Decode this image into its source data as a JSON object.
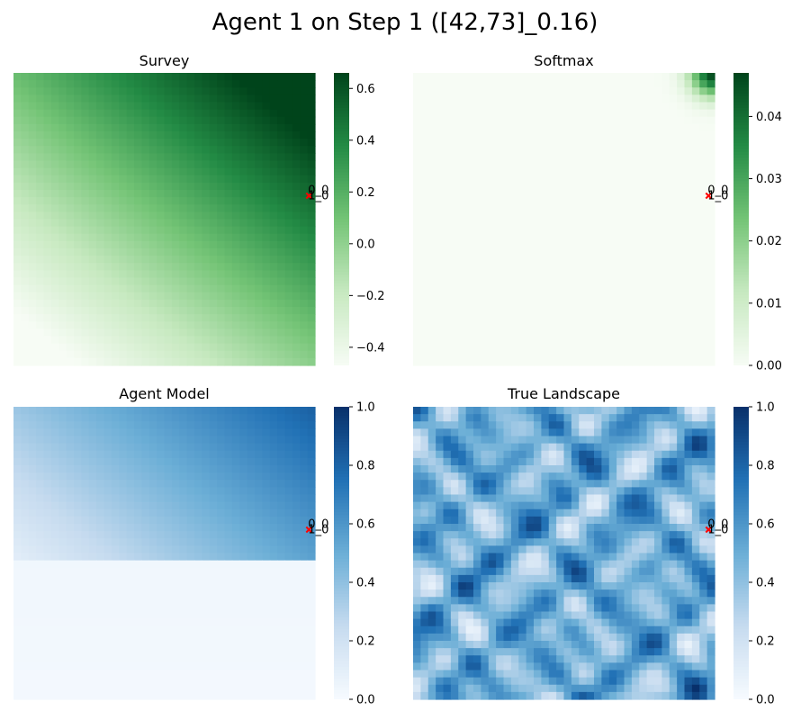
{
  "figure": {
    "suptitle": "Agent 1 on Step 1 ([42,73]_0.16)"
  },
  "chart_data": [
    {
      "type": "heatmap",
      "title": "Survey",
      "colormap": "Greens",
      "colors": [
        "#f7fcf5",
        "#c7e9c0",
        "#74c476",
        "#238b45",
        "#00441b"
      ],
      "vmin": -0.47,
      "vmax": 0.66,
      "colorbar_ticks": [
        "−0.4",
        "−0.2",
        "0.0",
        "0.2",
        "0.4",
        "0.6"
      ],
      "colorbar_tick_values": [
        -0.4,
        -0.2,
        0.0,
        0.2,
        0.4,
        0.6
      ],
      "grid": "smooth gradient increasing toward top-right",
      "marker": {
        "symbol": "x",
        "color": "#ff0000",
        "labels": [
          "0_0",
          "1_0"
        ],
        "row": 0.42,
        "col": 0.98
      }
    },
    {
      "type": "heatmap",
      "title": "Softmax",
      "colormap": "Greens",
      "colors": [
        "#f7fcf5",
        "#c7e9c0",
        "#74c476",
        "#238b45",
        "#00441b"
      ],
      "vmin": 0.0,
      "vmax": 0.047,
      "colorbar_ticks": [
        "0.00",
        "0.01",
        "0.02",
        "0.03",
        "0.04"
      ],
      "colorbar_tick_values": [
        0.0,
        0.01,
        0.02,
        0.03,
        0.04
      ],
      "grid": "near zero everywhere, peak at top-right corner",
      "marker": {
        "symbol": "x",
        "color": "#ff0000",
        "labels": [
          "0_0",
          "1_0"
        ],
        "row": 0.42,
        "col": 0.98
      }
    },
    {
      "type": "heatmap",
      "title": "Agent Model",
      "colormap": "Blues",
      "colors": [
        "#f7fbff",
        "#c6dbef",
        "#6baed6",
        "#2171b5",
        "#08306b"
      ],
      "vmin": 0.0,
      "vmax": 1.0,
      "colorbar_ticks": [
        "0.0",
        "0.2",
        "0.4",
        "0.6",
        "0.8",
        "1.0"
      ],
      "colorbar_tick_values": [
        0.0,
        0.2,
        0.4,
        0.6,
        0.8,
        1.0
      ],
      "grid": "upper half gradient toward top-right, lower half near zero",
      "marker": {
        "symbol": "x",
        "color": "#ff0000",
        "labels": [
          "0_0",
          "1_0"
        ],
        "row": 0.42,
        "col": 0.98
      }
    },
    {
      "type": "heatmap",
      "title": "True Landscape",
      "colormap": "Blues",
      "colors": [
        "#f7fbff",
        "#c6dbef",
        "#6baed6",
        "#2171b5",
        "#08306b"
      ],
      "vmin": 0.0,
      "vmax": 1.0,
      "colorbar_ticks": [
        "0.0",
        "0.2",
        "0.4",
        "0.6",
        "0.8",
        "1.0"
      ],
      "colorbar_tick_values": [
        0.0,
        0.2,
        0.4,
        0.6,
        0.8,
        1.0
      ],
      "grid": "random smooth noise landscape",
      "marker": {
        "symbol": "x",
        "color": "#ff0000",
        "labels": [
          "0_0",
          "1_0"
        ],
        "row": 0.42,
        "col": 0.98
      }
    }
  ]
}
